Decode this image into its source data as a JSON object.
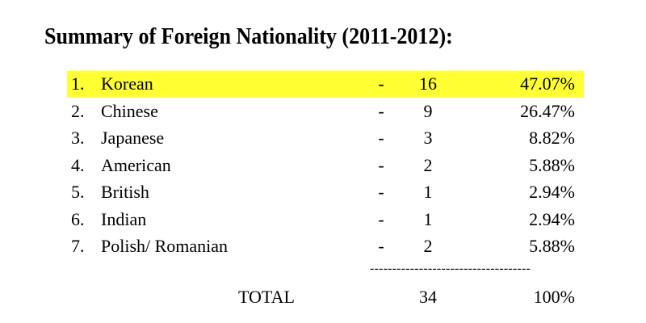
{
  "title": "Summary of Foreign Nationality (2011-2012):",
  "table": {
    "rows": [
      [
        "1.",
        "Korean",
        "-",
        "16",
        "47.07%"
      ],
      [
        "2.",
        "Chinese",
        "-",
        "9",
        "26.47%"
      ],
      [
        "3.",
        "Japanese",
        "-",
        "3",
        "8.82%"
      ],
      [
        "4.",
        "American",
        "-",
        "2",
        "5.88%"
      ],
      [
        "5.",
        "British",
        "-",
        "1",
        "2.94%"
      ],
      [
        "6.",
        "Indian",
        "-",
        "1",
        "2.94%"
      ],
      [
        "7.",
        "Polish/ Romanian",
        "-",
        "2",
        "5.88%"
      ]
    ],
    "separator": "------------------------------------",
    "total": {
      "label": "TOTAL",
      "count": "34",
      "percent": "100%"
    }
  }
}
